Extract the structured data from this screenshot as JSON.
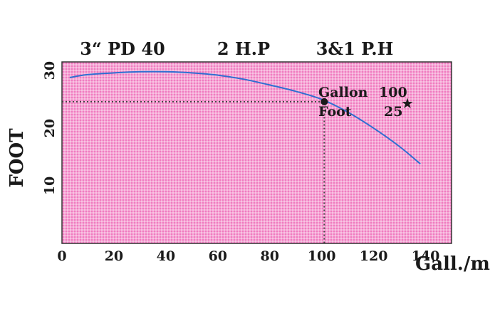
{
  "header": {
    "model": "3“ PD 40",
    "power": "2 H.P",
    "phase": "3&1  P.H"
  },
  "chart_data": {
    "type": "line",
    "xlabel": "Gall./m",
    "ylabel": "FOOT",
    "xlim": [
      0,
      150
    ],
    "ylim": [
      0,
      31.5
    ],
    "x_ticks": [
      0,
      20,
      40,
      60,
      80,
      100,
      120,
      140
    ],
    "y_ticks": [
      10,
      20,
      30
    ],
    "grid": true,
    "background_color": "#f07cc0",
    "grid_color": "#ffffff",
    "curve_color": "#2f6fd1",
    "series": [
      {
        "x": [
          3,
          10,
          20,
          30,
          40,
          50,
          60,
          70,
          80,
          90,
          100,
          110,
          120,
          130,
          138
        ],
        "y": [
          28.8,
          29.3,
          29.6,
          29.8,
          29.8,
          29.6,
          29.2,
          28.5,
          27.5,
          26.4,
          25.0,
          22.8,
          20.0,
          16.8,
          13.8
        ]
      }
    ],
    "duty_point": {
      "x": 101,
      "y": 24.6
    },
    "annotation": {
      "gallon_label": "Gallon",
      "gallon_value": "100",
      "foot_label": "Foot",
      "foot_value": "25"
    }
  }
}
